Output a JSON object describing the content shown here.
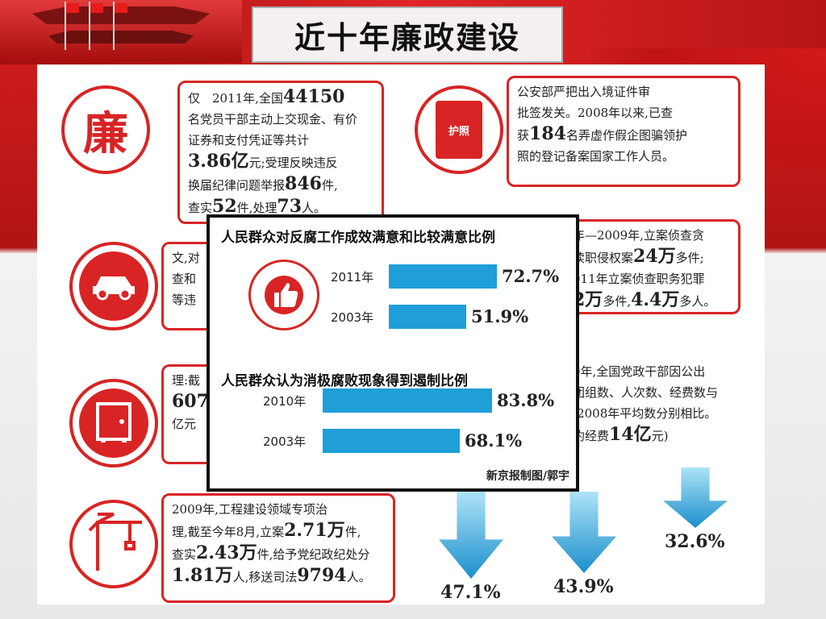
{
  "header": {
    "title": "近十年廉政建设"
  },
  "boxes": {
    "b1": {
      "icon_text": "廉",
      "lines": [
        "仅　2011年,全国",
        "44150",
        "名党员干部主动上交现金、有价",
        "证券和支付凭证等共计",
        "3.86亿",
        "元;受理反映违反",
        "换届纪律问题举报",
        "846",
        "件,",
        "查实",
        "52",
        "件,处理",
        "73",
        "人。"
      ]
    },
    "b2": {
      "icon_text": "护照",
      "lines": [
        "公安部严把出入境证件审",
        "批签发关。2008年以来,已查",
        "获",
        "184",
        "名弄虚作假企图骗领护",
        "照的登记备案国家工作人员。"
      ]
    },
    "b3": {
      "lines": [
        "文,对",
        "查和",
        "等违"
      ]
    },
    "b4": {
      "lines": [
        "年—2009年,立案侦查贪",
        "渎职侵权案",
        "24万",
        "多件;",
        "011年立案侦查职务犯罪",
        "2万",
        "多件,",
        "4.4万",
        "多人。"
      ]
    },
    "b5": {
      "lines": [
        "理:截",
        "607",
        "亿元"
      ]
    },
    "b6": {
      "lines": [
        "0年,全国党政干部因公出",
        "团组数、人次数、经费数与",
        "-2008年平均数分别相比。",
        "约经费",
        "14亿",
        "元)"
      ]
    },
    "b7": {
      "lines": [
        "2009年,工程建设领域专项治",
        "理,截至今年8月,立案",
        "2.71万",
        "件,",
        "查实",
        "2.43万",
        "件,给予党纪政纪处分",
        "1.81万",
        "人,移送司法",
        "9794",
        "人。"
      ]
    }
  },
  "overlay": {
    "chart1_title": "人民群众对反腐工作成效满意和比较满意比例",
    "chart2_title": "人民群众认为消极腐败现象得到遏制比例",
    "credit": "新京报制图/郭宇"
  },
  "chart_data": [
    {
      "type": "bar",
      "title": "人民群众对反腐工作成效满意和比较满意比例",
      "categories": [
        "2011年",
        "2003年"
      ],
      "values": [
        72.7,
        51.9
      ],
      "value_labels": [
        "72.7%",
        "51.9%"
      ]
    },
    {
      "type": "bar",
      "title": "人民群众认为消极腐败现象得到遏制比例",
      "categories": [
        "2010年",
        "2003年"
      ],
      "values": [
        83.8,
        68.1
      ],
      "value_labels": [
        "83.8%",
        "68.1%"
      ]
    },
    {
      "type": "bar",
      "title": "",
      "categories": [
        "",
        "",
        ""
      ],
      "values": [
        47.1,
        43.9,
        32.6
      ],
      "value_labels": [
        "47.1%",
        "43.9%",
        "32.6%"
      ]
    }
  ],
  "colors": {
    "accent_red": "#d82424",
    "bar_blue": "#1f9ed8"
  },
  "icons": [
    "lian-icon",
    "passport-icon",
    "car-icon",
    "safe-icon",
    "crane-icon",
    "thumbs-up-icon"
  ]
}
